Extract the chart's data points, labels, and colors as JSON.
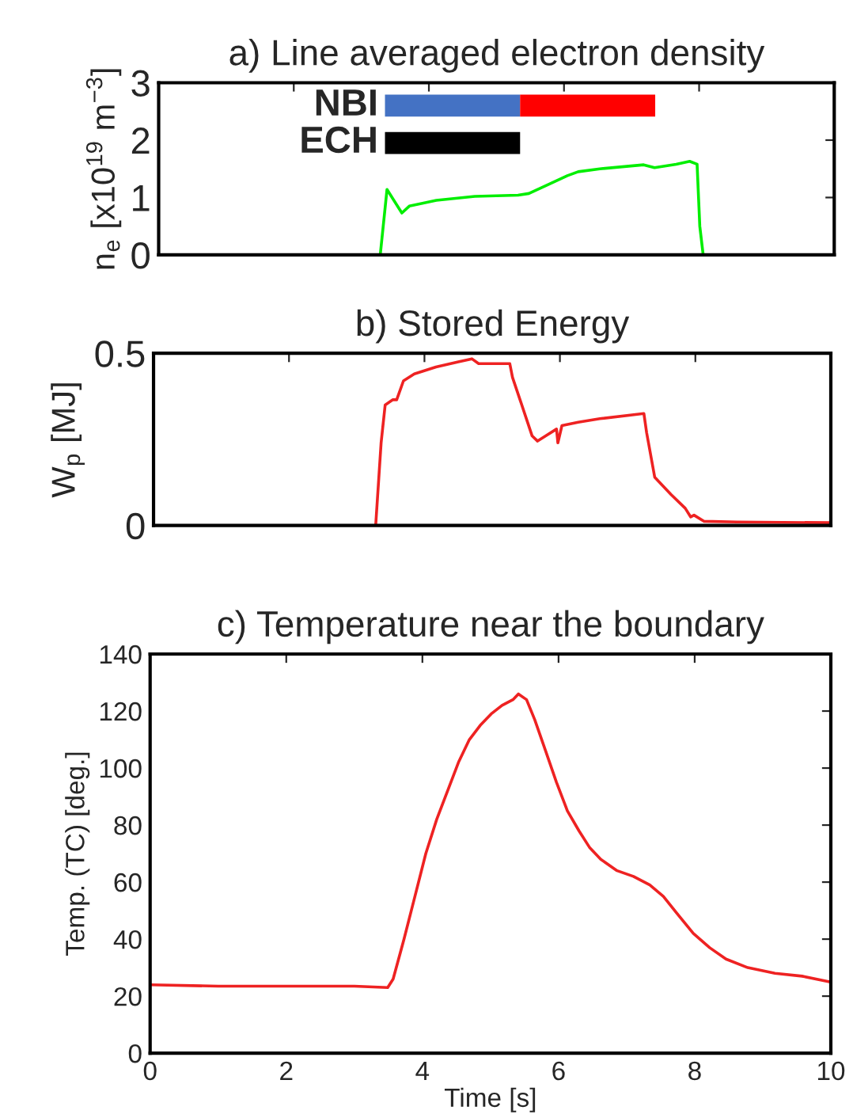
{
  "chart_data": [
    {
      "type": "line",
      "title": "a) Line averaged electron density",
      "ylabel": "n$_{e}$ [x10$^{19}$ m$^{−3}$]",
      "xlim": [
        0,
        10
      ],
      "ylim": [
        0,
        3
      ],
      "yticks": [
        0,
        1,
        2,
        3
      ],
      "xticks": [
        {
          "value": 0,
          "label": null
        },
        {
          "value": 2,
          "label": null
        },
        {
          "value": 4,
          "label": null
        },
        {
          "value": 6,
          "label": null
        },
        {
          "value": 8,
          "label": null
        },
        {
          "value": 10,
          "label": null
        }
      ],
      "tick_labels": "y",
      "series": [
        {
          "color": "#00ee00",
          "x": [
            3.28,
            3.38,
            3.6,
            3.71,
            4.11,
            4.68,
            5.32,
            5.48,
            5.81,
            6.05,
            6.21,
            6.53,
            7.18,
            7.34,
            7.66,
            7.86,
            7.97,
            8.01,
            8.06
          ],
          "values": [
            0,
            1.14,
            0.73,
            0.85,
            0.95,
            1.02,
            1.04,
            1.07,
            1.25,
            1.38,
            1.45,
            1.5,
            1.57,
            1.52,
            1.58,
            1.63,
            1.58,
            0.5,
            0
          ]
        },
        {
          "name": "NBI",
          "type": "line",
          "color": "#4472c4",
          "x": [
            3.35,
            5.35
          ],
          "values": [
            2.6,
            2.6
          ]
        },
        {
          "type": "line",
          "color": "#ff0000",
          "x": [
            5.35,
            7.35
          ],
          "values": [
            2.6,
            2.6
          ]
        },
        {
          "name": "ECH",
          "type": "line",
          "color": "#000000",
          "x": [
            3.35,
            5.35
          ],
          "values": [
            1.95,
            1.95
          ]
        }
      ]
    },
    {
      "type": "line",
      "title": "b) Stored Energy",
      "ylabel": "W$_{p}$ [MJ]",
      "xlim": [
        0,
        10
      ],
      "ylim": [
        0,
        0.5
      ],
      "yticks": [
        0,
        0.5
      ],
      "xticks": [
        {
          "value": 0,
          "label": null
        },
        {
          "value": 2,
          "label": null
        },
        {
          "value": 4,
          "label": null
        },
        {
          "value": 6,
          "label": null
        },
        {
          "value": 8,
          "label": null
        },
        {
          "value": 10,
          "label": null
        }
      ],
      "tick_labels": "y",
      "series": [
        {
          "color": "#ee2222",
          "x": [
            3.28,
            3.36,
            3.42,
            3.53,
            3.59,
            3.69,
            3.85,
            4.17,
            4.5,
            4.7,
            4.8,
            4.98,
            5.26,
            5.3,
            5.42,
            5.59,
            5.67,
            5.79,
            5.95,
            5.97,
            6.03,
            6.27,
            6.59,
            7.24,
            7.28,
            7.4,
            7.64,
            7.85,
            7.93,
            7.98,
            8.13,
            8.61,
            9.98
          ],
          "values": [
            0,
            0.24,
            0.35,
            0.365,
            0.365,
            0.42,
            0.44,
            0.46,
            0.475,
            0.484,
            0.47,
            0.47,
            0.47,
            0.43,
            0.36,
            0.26,
            0.245,
            0.26,
            0.28,
            0.24,
            0.29,
            0.3,
            0.31,
            0.325,
            0.27,
            0.14,
            0.09,
            0.05,
            0.025,
            0.03,
            0.012,
            0.01,
            0.008
          ]
        }
      ]
    },
    {
      "type": "line",
      "title": "c) Temperature near the boundary",
      "xlabel": "Time [s]",
      "ylabel": "Temp. (TC) [deg.]",
      "xlim": [
        0,
        10
      ],
      "ylim": [
        0,
        140
      ],
      "xticks": [
        0,
        2,
        4,
        6,
        8,
        10
      ],
      "yticks": [
        0,
        20,
        40,
        60,
        80,
        100,
        120,
        140
      ],
      "series": [
        {
          "color": "#ee2222",
          "x": [
            0,
            1,
            2,
            3,
            3.49,
            3.57,
            3.73,
            3.89,
            4.05,
            4.21,
            4.37,
            4.53,
            4.69,
            4.85,
            5.01,
            5.17,
            5.33,
            5.41,
            5.53,
            5.65,
            5.81,
            5.97,
            6.13,
            6.3,
            6.46,
            6.62,
            6.86,
            7.1,
            7.34,
            7.54,
            7.74,
            7.98,
            8.22,
            8.46,
            8.78,
            9.18,
            9.58,
            9.98
          ],
          "values": [
            24,
            23.5,
            23.5,
            23.5,
            23,
            26,
            40,
            55,
            70,
            82,
            92,
            102,
            110,
            115,
            119,
            122,
            124,
            126,
            124,
            117,
            106,
            95,
            85,
            78,
            72,
            68,
            64,
            62,
            59,
            55,
            49,
            42,
            37,
            33,
            30,
            28,
            27,
            25
          ]
        }
      ]
    }
  ]
}
